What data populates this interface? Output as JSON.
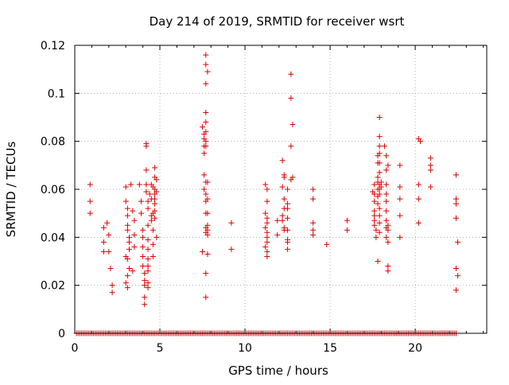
{
  "chart_data": {
    "type": "scatter",
    "title": "Day 214 of 2019, SRMTID for receiver wsrt",
    "xlabel": "GPS time / hours",
    "ylabel": "SRMTID / TECUs",
    "xlim": [
      0,
      24.2
    ],
    "ylim": [
      0,
      0.12
    ],
    "x_ticks": [
      "0",
      "5",
      "10",
      "15",
      "20"
    ],
    "y_ticks": [
      "0",
      "0.02",
      "0.04",
      "0.06",
      "0.08",
      "0.1",
      "0.12"
    ],
    "grid": true,
    "marker": "+",
    "color": "#dd0000",
    "series": [
      {
        "name": "SRMTID",
        "points": [
          [
            0.9,
            0.062
          ],
          [
            0.9,
            0.055
          ],
          [
            0.9,
            0.05
          ],
          [
            1.7,
            0.044
          ],
          [
            1.7,
            0.038
          ],
          [
            1.7,
            0.034
          ],
          [
            1.9,
            0.046
          ],
          [
            2.0,
            0.041
          ],
          [
            2.0,
            0.034
          ],
          [
            2.1,
            0.027
          ],
          [
            2.2,
            0.02
          ],
          [
            2.2,
            0.017
          ],
          [
            3.0,
            0.061
          ],
          [
            3.0,
            0.055
          ],
          [
            3.1,
            0.052
          ],
          [
            3.1,
            0.049
          ],
          [
            3.1,
            0.045
          ],
          [
            3.1,
            0.043
          ],
          [
            3.2,
            0.04
          ],
          [
            3.2,
            0.038
          ],
          [
            3.2,
            0.035
          ],
          [
            3.0,
            0.032
          ],
          [
            3.1,
            0.031
          ],
          [
            3.2,
            0.027
          ],
          [
            3.1,
            0.024
          ],
          [
            3.0,
            0.021
          ],
          [
            3.1,
            0.019
          ],
          [
            3.3,
            0.062
          ],
          [
            3.4,
            0.051
          ],
          [
            3.5,
            0.047
          ],
          [
            3.5,
            0.041
          ],
          [
            3.5,
            0.036
          ],
          [
            3.4,
            0.026
          ],
          [
            3.8,
            0.062
          ],
          [
            3.9,
            0.055
          ],
          [
            3.9,
            0.05
          ],
          [
            4.0,
            0.043
          ],
          [
            4.0,
            0.04
          ],
          [
            4.0,
            0.036
          ],
          [
            4.0,
            0.032
          ],
          [
            4.0,
            0.028
          ],
          [
            4.1,
            0.025
          ],
          [
            4.1,
            0.022
          ],
          [
            4.1,
            0.02
          ],
          [
            4.1,
            0.015
          ],
          [
            4.1,
            0.012
          ],
          [
            4.2,
            0.079
          ],
          [
            4.2,
            0.078
          ],
          [
            4.2,
            0.068
          ],
          [
            4.2,
            0.062
          ],
          [
            4.2,
            0.059
          ],
          [
            4.3,
            0.055
          ],
          [
            4.3,
            0.052
          ],
          [
            4.3,
            0.045
          ],
          [
            4.3,
            0.039
          ],
          [
            4.3,
            0.035
          ],
          [
            4.3,
            0.031
          ],
          [
            4.3,
            0.028
          ],
          [
            4.3,
            0.026
          ],
          [
            4.3,
            0.021
          ],
          [
            4.3,
            0.019
          ],
          [
            4.4,
            0.058
          ],
          [
            4.5,
            0.062
          ],
          [
            4.5,
            0.056
          ],
          [
            4.5,
            0.049
          ],
          [
            4.5,
            0.047
          ],
          [
            4.6,
            0.061
          ],
          [
            4.6,
            0.05
          ],
          [
            4.6,
            0.043
          ],
          [
            4.6,
            0.037
          ],
          [
            4.6,
            0.032
          ],
          [
            4.7,
            0.069
          ],
          [
            4.7,
            0.065
          ],
          [
            4.7,
            0.06
          ],
          [
            4.7,
            0.058
          ],
          [
            4.7,
            0.056
          ],
          [
            4.7,
            0.054
          ],
          [
            4.7,
            0.051
          ],
          [
            4.7,
            0.048
          ],
          [
            4.8,
            0.064
          ],
          [
            4.8,
            0.059
          ],
          [
            4.8,
            0.04
          ],
          [
            7.5,
            0.086
          ],
          [
            7.6,
            0.083
          ],
          [
            7.6,
            0.081
          ],
          [
            7.6,
            0.078
          ],
          [
            7.6,
            0.075
          ],
          [
            7.6,
            0.066
          ],
          [
            7.6,
            0.06
          ],
          [
            7.5,
            0.034
          ],
          [
            7.7,
            0.116
          ],
          [
            7.7,
            0.112
          ],
          [
            7.7,
            0.104
          ],
          [
            7.7,
            0.092
          ],
          [
            7.7,
            0.088
          ],
          [
            7.7,
            0.084
          ],
          [
            7.7,
            0.08
          ],
          [
            7.7,
            0.078
          ],
          [
            7.7,
            0.063
          ],
          [
            7.7,
            0.058
          ],
          [
            7.7,
            0.055
          ],
          [
            7.7,
            0.05
          ],
          [
            7.7,
            0.044
          ],
          [
            7.7,
            0.042
          ],
          [
            7.7,
            0.025
          ],
          [
            7.7,
            0.015
          ],
          [
            7.8,
            0.109
          ],
          [
            7.8,
            0.063
          ],
          [
            7.8,
            0.056
          ],
          [
            7.8,
            0.05
          ],
          [
            7.8,
            0.045
          ],
          [
            7.8,
            0.043
          ],
          [
            7.8,
            0.041
          ],
          [
            7.8,
            0.033
          ],
          [
            9.2,
            0.046
          ],
          [
            9.2,
            0.035
          ],
          [
            11.2,
            0.062
          ],
          [
            11.3,
            0.06
          ],
          [
            11.3,
            0.055
          ],
          [
            11.2,
            0.05
          ],
          [
            11.3,
            0.048
          ],
          [
            11.3,
            0.046
          ],
          [
            11.2,
            0.044
          ],
          [
            11.3,
            0.042
          ],
          [
            11.3,
            0.04
          ],
          [
            11.3,
            0.038
          ],
          [
            11.2,
            0.036
          ],
          [
            11.3,
            0.034
          ],
          [
            11.3,
            0.032
          ],
          [
            11.9,
            0.047
          ],
          [
            11.9,
            0.041
          ],
          [
            12.2,
            0.072
          ],
          [
            12.3,
            0.066
          ],
          [
            12.3,
            0.065
          ],
          [
            12.2,
            0.061
          ],
          [
            12.3,
            0.056
          ],
          [
            12.3,
            0.052
          ],
          [
            12.2,
            0.049
          ],
          [
            12.2,
            0.047
          ],
          [
            12.3,
            0.044
          ],
          [
            12.3,
            0.043
          ],
          [
            12.5,
            0.06
          ],
          [
            12.5,
            0.054
          ],
          [
            12.5,
            0.052
          ],
          [
            12.5,
            0.048
          ],
          [
            12.5,
            0.043
          ],
          [
            12.5,
            0.039
          ],
          [
            12.5,
            0.038
          ],
          [
            12.5,
            0.035
          ],
          [
            12.7,
            0.108
          ],
          [
            12.7,
            0.098
          ],
          [
            12.8,
            0.087
          ],
          [
            12.7,
            0.078
          ],
          [
            12.8,
            0.065
          ],
          [
            12.7,
            0.064
          ],
          [
            14.0,
            0.06
          ],
          [
            14.0,
            0.056
          ],
          [
            14.0,
            0.046
          ],
          [
            14.0,
            0.043
          ],
          [
            14.0,
            0.041
          ],
          [
            14.8,
            0.037
          ],
          [
            16.0,
            0.047
          ],
          [
            16.0,
            0.043
          ],
          [
            17.5,
            0.059
          ],
          [
            17.6,
            0.062
          ],
          [
            17.6,
            0.058
          ],
          [
            17.6,
            0.055
          ],
          [
            17.6,
            0.051
          ],
          [
            17.6,
            0.049
          ],
          [
            17.6,
            0.047
          ],
          [
            17.6,
            0.045
          ],
          [
            17.7,
            0.043
          ],
          [
            17.7,
            0.04
          ],
          [
            17.8,
            0.074
          ],
          [
            17.8,
            0.071
          ],
          [
            17.8,
            0.065
          ],
          [
            17.8,
            0.063
          ],
          [
            17.8,
            0.06
          ],
          [
            17.8,
            0.057
          ],
          [
            17.8,
            0.054
          ],
          [
            17.8,
            0.03
          ],
          [
            17.9,
            0.09
          ],
          [
            17.9,
            0.082
          ],
          [
            17.9,
            0.078
          ],
          [
            17.9,
            0.075
          ],
          [
            17.9,
            0.071
          ],
          [
            17.9,
            0.067
          ],
          [
            17.9,
            0.062
          ],
          [
            17.9,
            0.06
          ],
          [
            17.9,
            0.058
          ],
          [
            17.9,
            0.052
          ],
          [
            17.9,
            0.049
          ],
          [
            17.9,
            0.046
          ],
          [
            17.9,
            0.042
          ],
          [
            18.0,
            0.063
          ],
          [
            18.0,
            0.061
          ],
          [
            18.2,
            0.078
          ],
          [
            18.3,
            0.074
          ],
          [
            18.3,
            0.068
          ],
          [
            18.3,
            0.062
          ],
          [
            18.3,
            0.058
          ],
          [
            18.3,
            0.055
          ],
          [
            18.3,
            0.051
          ],
          [
            18.3,
            0.047
          ],
          [
            18.3,
            0.044
          ],
          [
            18.3,
            0.04
          ],
          [
            18.4,
            0.07
          ],
          [
            18.4,
            0.045
          ],
          [
            18.4,
            0.043
          ],
          [
            18.4,
            0.038
          ],
          [
            18.4,
            0.028
          ],
          [
            18.4,
            0.026
          ],
          [
            19.1,
            0.07
          ],
          [
            19.1,
            0.061
          ],
          [
            19.1,
            0.056
          ],
          [
            19.1,
            0.049
          ],
          [
            19.1,
            0.04
          ],
          [
            20.2,
            0.081
          ],
          [
            20.2,
            0.062
          ],
          [
            20.2,
            0.056
          ],
          [
            20.2,
            0.046
          ],
          [
            20.3,
            0.08
          ],
          [
            20.9,
            0.073
          ],
          [
            20.9,
            0.07
          ],
          [
            20.9,
            0.068
          ],
          [
            20.9,
            0.061
          ],
          [
            22.4,
            0.066
          ],
          [
            22.4,
            0.056
          ],
          [
            22.4,
            0.054
          ],
          [
            22.4,
            0.048
          ],
          [
            22.5,
            0.038
          ],
          [
            22.4,
            0.027
          ],
          [
            22.5,
            0.024
          ],
          [
            22.4,
            0.018
          ]
        ],
        "zero_values": {
          "from": 0.1,
          "to": 22.4,
          "step": 0.1,
          "y": 0
        }
      }
    ]
  }
}
